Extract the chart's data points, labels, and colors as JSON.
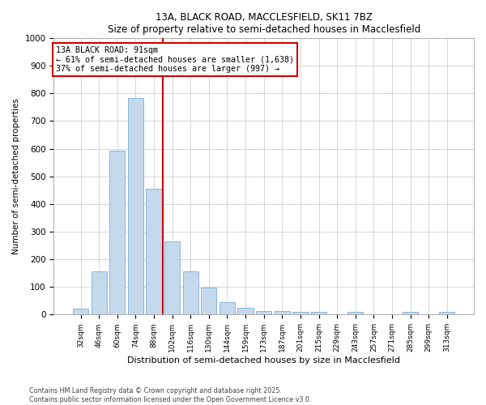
{
  "title1": "13A, BLACK ROAD, MACCLESFIELD, SK11 7BZ",
  "title2": "Size of property relative to semi-detached houses in Macclesfield",
  "xlabel": "Distribution of semi-detached houses by size in Macclesfield",
  "ylabel": "Number of semi-detached properties",
  "categories": [
    "32sqm",
    "46sqm",
    "60sqm",
    "74sqm",
    "88sqm",
    "102sqm",
    "116sqm",
    "130sqm",
    "144sqm",
    "159sqm",
    "173sqm",
    "187sqm",
    "201sqm",
    "215sqm",
    "229sqm",
    "243sqm",
    "257sqm",
    "271sqm",
    "285sqm",
    "299sqm",
    "313sqm"
  ],
  "values": [
    22,
    155,
    592,
    784,
    455,
    265,
    155,
    97,
    44,
    25,
    12,
    13,
    10,
    10,
    0,
    10,
    0,
    0,
    10,
    0,
    10
  ],
  "bar_color": "#c5d9ed",
  "bar_edge_color": "#7aadd4",
  "vline_x_index": 4.5,
  "vline_color": "#cc0000",
  "annotation_text": "13A BLACK ROAD: 91sqm\n← 61% of semi-detached houses are smaller (1,638)\n37% of semi-detached houses are larger (997) →",
  "annotation_box_color": "#ffffff",
  "annotation_box_edge": "#cc0000",
  "ylim": [
    0,
    1000
  ],
  "yticks": [
    0,
    100,
    200,
    300,
    400,
    500,
    600,
    700,
    800,
    900,
    1000
  ],
  "footer1": "Contains HM Land Registry data © Crown copyright and database right 2025.",
  "footer2": "Contains public sector information licensed under the Open Government Licence v3.0.",
  "bg_color": "#ffffff",
  "plot_bg_color": "#ffffff",
  "grid_color": "#d0d0d0"
}
